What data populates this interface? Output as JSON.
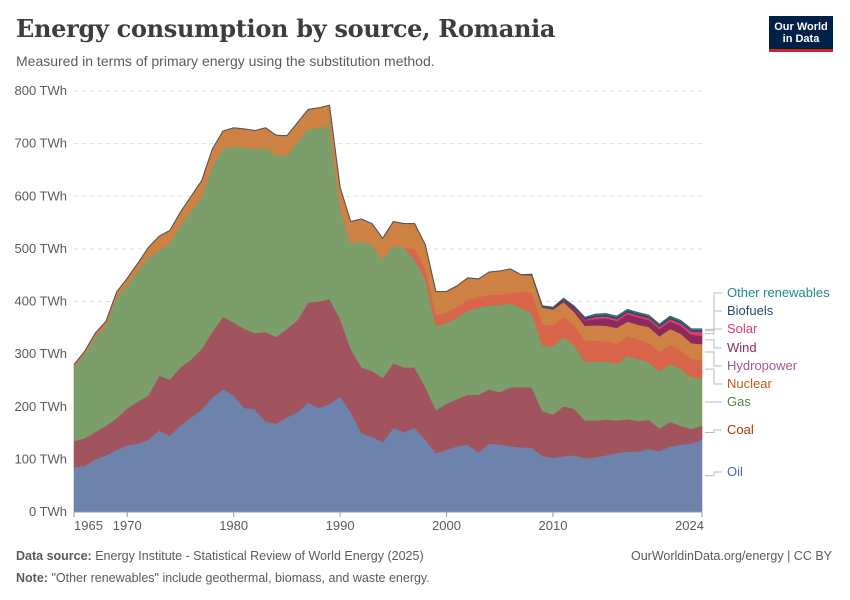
{
  "header": {
    "title": "Energy consumption by source, Romania",
    "subtitle": "Measured in terms of primary energy using the substitution method.",
    "logo_line1": "Our World",
    "logo_line2": "in Data"
  },
  "footer": {
    "source_label": "Data source:",
    "source_text": "Energy Institute - Statistical Review of World Energy (2025)",
    "note_label": "Note:",
    "note_text": "\"Other renewables\" include geothermal, biomass, and waste energy.",
    "url_text": "OurWorldinData.org/energy | CC BY"
  },
  "chart_data": {
    "type": "area",
    "stacked": true,
    "title": "Energy consumption by source, Romania",
    "xlabel": "",
    "ylabel": "",
    "unit": "TWh",
    "ylim": [
      0,
      800
    ],
    "yticks": [
      "0 TWh",
      "100 TWh",
      "200 TWh",
      "300 TWh",
      "400 TWh",
      "500 TWh",
      "600 TWh",
      "700 TWh",
      "800 TWh"
    ],
    "ytick_values": [
      0,
      100,
      200,
      300,
      400,
      500,
      600,
      700,
      800
    ],
    "xticks": [
      "1965",
      "1970",
      "1980",
      "1990",
      "2000",
      "2010",
      "2024"
    ],
    "xtick_values": [
      1965,
      1970,
      1980,
      1990,
      2000,
      2010,
      2024
    ],
    "xlim": [
      1965,
      2024
    ],
    "grid": true,
    "legend_position": "right",
    "years_sparse": [
      1965,
      1966,
      1967,
      1968,
      1969,
      1970,
      1971,
      1972,
      1973,
      1974,
      1975,
      1976,
      1977,
      1978,
      1979,
      1980,
      1981,
      1982,
      1983,
      1984,
      1985,
      1986,
      1987,
      1988,
      1989,
      1990,
      1991,
      1992,
      1993,
      1994,
      1995,
      1996,
      1997,
      1998,
      1999,
      2000,
      2001,
      2002,
      2003,
      2004,
      2005,
      2006,
      2007,
      2008,
      2009,
      2010,
      2011,
      2012,
      2013,
      2014,
      2015,
      2016,
      2017,
      2018,
      2019,
      2020,
      2021,
      2022,
      2023,
      2024
    ],
    "series": [
      {
        "name": "Oil",
        "color": "#6d83ab",
        "label_color": "#4c6a9c",
        "values": [
          85,
          88,
          100,
          108,
          118,
          127,
          130,
          138,
          155,
          145,
          165,
          180,
          195,
          218,
          233,
          222,
          198,
          195,
          172,
          168,
          180,
          190,
          208,
          198,
          205,
          220,
          190,
          150,
          143,
          133,
          160,
          152,
          160,
          138,
          112,
          118,
          125,
          128,
          113,
          130,
          128,
          125,
          123,
          122,
          107,
          103,
          106,
          108,
          102,
          104,
          108,
          112,
          115,
          115,
          120,
          116,
          125,
          128,
          130,
          138
        ]
      },
      {
        "name": "Coal",
        "color": "#a2545e",
        "label_color": "#b13507",
        "values": [
          50,
          52,
          52,
          56,
          60,
          70,
          80,
          84,
          104,
          107,
          110,
          110,
          115,
          125,
          138,
          138,
          150,
          145,
          170,
          165,
          168,
          175,
          190,
          202,
          200,
          147,
          120,
          125,
          125,
          122,
          123,
          123,
          115,
          100,
          82,
          88,
          90,
          95,
          110,
          103,
          100,
          112,
          115,
          115,
          85,
          82,
          95,
          88,
          72,
          70,
          68,
          62,
          62,
          58,
          55,
          43,
          46,
          36,
          28,
          26
        ]
      },
      {
        "name": "Gas",
        "color": "#7b9e6a",
        "label_color": "#578145",
        "values": [
          140,
          160,
          180,
          190,
          230,
          235,
          248,
          263,
          238,
          260,
          270,
          282,
          290,
          315,
          320,
          335,
          345,
          350,
          350,
          345,
          330,
          338,
          330,
          330,
          330,
          210,
          200,
          240,
          240,
          225,
          223,
          227,
          205,
          205,
          160,
          153,
          155,
          160,
          165,
          160,
          165,
          160,
          150,
          140,
          125,
          130,
          132,
          120,
          112,
          112,
          110,
          108,
          120,
          118,
          110,
          108,
          110,
          108,
          98,
          90
        ]
      },
      {
        "name": "Nuclear",
        "color": "#d9654b",
        "label_color": "#c05917",
        "values": [
          0,
          0,
          0,
          0,
          0,
          0,
          0,
          0,
          0,
          0,
          0,
          0,
          0,
          0,
          0,
          0,
          0,
          0,
          0,
          0,
          0,
          0,
          0,
          0,
          0,
          0,
          0,
          0,
          0,
          0,
          0,
          0,
          20,
          20,
          20,
          20,
          20,
          20,
          20,
          20,
          20,
          20,
          30,
          40,
          40,
          40,
          38,
          38,
          40,
          40,
          38,
          38,
          37,
          37,
          37,
          37,
          37,
          35,
          35,
          35
        ]
      },
      {
        "name": "Hydropower",
        "color": "#cd8142",
        "label_color": "#a2559c",
        "values": [
          5,
          5,
          8,
          8,
          10,
          12,
          15,
          18,
          27,
          23,
          25,
          28,
          30,
          32,
          33,
          35,
          35,
          35,
          38,
          38,
          37,
          37,
          37,
          38,
          38,
          40,
          42,
          42,
          40,
          40,
          46,
          46,
          48,
          45,
          45,
          40,
          40,
          42,
          35,
          43,
          45,
          45,
          33,
          33,
          32,
          30,
          28,
          26,
          28,
          29,
          30,
          30,
          28,
          28,
          30,
          30,
          30,
          32,
          30,
          30
        ]
      },
      {
        "name": "Wind",
        "color": "#8c2a5e",
        "label_color": "#8c2a5e",
        "values": [
          0,
          0,
          0,
          0,
          0,
          0,
          0,
          0,
          0,
          0,
          0,
          0,
          0,
          0,
          0,
          0,
          0,
          0,
          0,
          0,
          0,
          0,
          0,
          0,
          0,
          0,
          0,
          0,
          0,
          0,
          0,
          0,
          0,
          0,
          0,
          0,
          0,
          0,
          0,
          0,
          0,
          0,
          0,
          0,
          0,
          1,
          3,
          6,
          10,
          12,
          14,
          13,
          14,
          14,
          13,
          14,
          14,
          15,
          16,
          16
        ]
      },
      {
        "name": "Solar",
        "color": "#dd3b6b",
        "label_color": "#dd3b6b",
        "values": [
          0,
          0,
          0,
          0,
          0,
          0,
          0,
          0,
          0,
          0,
          0,
          0,
          0,
          0,
          0,
          0,
          0,
          0,
          0,
          0,
          0,
          0,
          0,
          0,
          0,
          0,
          0,
          0,
          0,
          0,
          0,
          0,
          0,
          0,
          0,
          0,
          0,
          0,
          0,
          0,
          0,
          0,
          0,
          0,
          0,
          0,
          0,
          1,
          2,
          4,
          4,
          4,
          4,
          4,
          4,
          4,
          5,
          5,
          6,
          8
        ]
      },
      {
        "name": "Biofuels",
        "color": "#23486e",
        "label_color": "#23486e",
        "values": [
          0,
          0,
          0,
          0,
          0,
          0,
          0,
          0,
          0,
          0,
          0,
          0,
          0,
          0,
          0,
          0,
          0,
          0,
          0,
          0,
          0,
          0,
          0,
          0,
          0,
          0,
          0,
          0,
          0,
          0,
          0,
          0,
          0,
          0,
          0,
          0,
          0,
          0,
          0,
          0,
          0,
          0,
          0,
          1,
          2,
          2,
          3,
          3,
          3,
          3,
          3,
          3,
          3,
          3,
          3,
          3,
          3,
          3,
          3,
          3
        ]
      },
      {
        "name": "Other renewables",
        "color": "#1f8a8a",
        "label_color": "#1f8a8a",
        "values": [
          0,
          0,
          0,
          0,
          0,
          0,
          0,
          0,
          0,
          0,
          0,
          0,
          0,
          0,
          0,
          0,
          0,
          0,
          0,
          0,
          0,
          0,
          0,
          0,
          0,
          0,
          0,
          0,
          0,
          0,
          0,
          0,
          0,
          0,
          0,
          0,
          0,
          0,
          0,
          0,
          0,
          0,
          0,
          1,
          1,
          1,
          1,
          1,
          1,
          2,
          2,
          2,
          2,
          2,
          2,
          2,
          2,
          2,
          2,
          2
        ]
      }
    ]
  }
}
